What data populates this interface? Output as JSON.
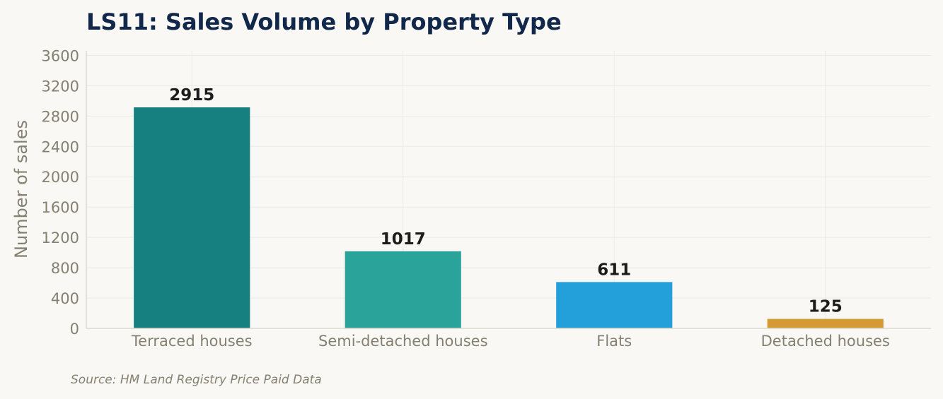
{
  "chart_data": {
    "type": "bar",
    "title": "LS11: Sales Volume by Property Type",
    "xlabel": "",
    "ylabel": "Number of sales",
    "categories": [
      "Terraced houses",
      "Semi-detached houses",
      "Flats",
      "Detached houses"
    ],
    "values": [
      2915,
      1017,
      611,
      125
    ],
    "bar_colors": [
      "#168080",
      "#2aa39b",
      "#239fd9",
      "#d49a33"
    ],
    "ylim": [
      0,
      3600
    ],
    "yticks": [
      0,
      400,
      800,
      1200,
      1600,
      2000,
      2400,
      2800,
      3200,
      3600
    ],
    "grid": true,
    "legend": "none",
    "source": "Source: HM Land Registry Price Paid Data"
  },
  "colors": {
    "background": "#f9f8f4",
    "title": "#12284b",
    "axis_text": "#858070",
    "data_label": "#1c1c1c",
    "grid": "#ecebe5",
    "axis_line": "#dcdad0"
  }
}
